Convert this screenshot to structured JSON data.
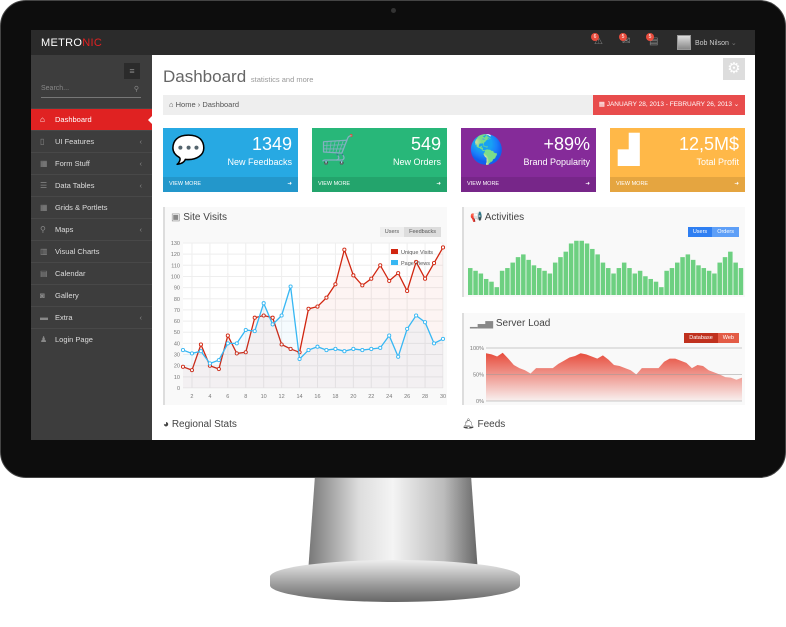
{
  "brand": {
    "logo_a": "METRO",
    "logo_b": "NIC",
    "accent": "#e02222"
  },
  "topbar": {
    "notifications": [
      {
        "icon": "warning-icon",
        "count": "6"
      },
      {
        "icon": "inbox-icon",
        "count": "5"
      },
      {
        "icon": "tasks-icon",
        "count": "5"
      }
    ],
    "user": "Bob Nilson"
  },
  "sidebar": {
    "search_placeholder": "Search...",
    "items": [
      {
        "label": "Dashboard",
        "icon": "⌂",
        "active": true,
        "sub": false
      },
      {
        "label": "UI Features",
        "icon": "▯",
        "sub": true
      },
      {
        "label": "Form Stuff",
        "icon": "▦",
        "sub": true
      },
      {
        "label": "Data Tables",
        "icon": "☰",
        "sub": true
      },
      {
        "label": "Grids & Portlets",
        "icon": "▦",
        "sub": false
      },
      {
        "label": "Maps",
        "icon": "⚲",
        "sub": true
      },
      {
        "label": "Visual Charts",
        "icon": "▥",
        "sub": false
      },
      {
        "label": "Calendar",
        "icon": "▤",
        "sub": false
      },
      {
        "label": "Gallery",
        "icon": "◙",
        "sub": false
      },
      {
        "label": "Extra",
        "icon": "▬",
        "sub": true
      },
      {
        "label": "Login Page",
        "icon": "♟",
        "sub": false
      }
    ]
  },
  "page": {
    "title": "Dashboard",
    "subtitle": "statistics and more",
    "breadcrumb": [
      "Home",
      "Dashboard"
    ],
    "date_range": "JANUARY 28, 2013 - FEBRUARY 26, 2013"
  },
  "tiles": [
    {
      "value": "1349",
      "label": "New Feedbacks",
      "more": "VIEW MORE",
      "color": "#27a9e3",
      "icon": "💬"
    },
    {
      "value": "549",
      "label": "New Orders",
      "more": "VIEW MORE",
      "color": "#28b779",
      "icon": "🛒"
    },
    {
      "value": "+89%",
      "label": "Brand Popularity",
      "more": "VIEW MORE",
      "color": "#852b99",
      "icon": "🌎"
    },
    {
      "value": "12,5M$",
      "label": "Total Profit",
      "more": "VIEW MORE",
      "color": "#ffb848",
      "icon": "▟"
    }
  ],
  "site_visits": {
    "title": "Site Visits",
    "buttons": [
      "Users",
      "Feedbacks"
    ]
  },
  "activities": {
    "title": "Activities",
    "buttons": [
      "Users",
      "Orders"
    ]
  },
  "server_load": {
    "title": "Server Load",
    "buttons": [
      "Database",
      "Web"
    ]
  },
  "bottom": {
    "regional": "Regional Stats",
    "feeds": "Feeds"
  },
  "chart_data": [
    {
      "type": "line",
      "x": [
        1,
        2,
        3,
        4,
        5,
        6,
        7,
        8,
        9,
        10,
        11,
        12,
        13,
        14,
        15,
        16,
        17,
        18,
        19,
        20,
        21,
        22,
        23,
        24,
        25,
        26,
        27,
        28,
        29,
        30
      ],
      "xticks": [
        "2",
        "4",
        "6",
        "8",
        "10",
        "12",
        "14",
        "16",
        "18",
        "20",
        "22",
        "24",
        "26",
        "28",
        "30"
      ],
      "yticks": [
        "0",
        "10",
        "20",
        "30",
        "40",
        "50",
        "60",
        "70",
        "80",
        "90",
        "100",
        "110",
        "120",
        "130"
      ],
      "ylim": [
        0,
        130
      ],
      "grid": true,
      "legend": "top-right",
      "series": [
        {
          "name": "Unique Visits",
          "color": "#d12610",
          "values": [
            19,
            16,
            39,
            20,
            17,
            47,
            31,
            32,
            63,
            65,
            63,
            39,
            35,
            32,
            71,
            73,
            81,
            93,
            124,
            101,
            92,
            98,
            110,
            96,
            103,
            87,
            113,
            98,
            112,
            126
          ]
        },
        {
          "name": "Page Views",
          "color": "#37b7f3",
          "values": [
            34,
            31,
            33,
            22,
            25,
            40,
            40,
            52,
            51,
            76,
            57,
            65,
            91,
            26,
            34,
            37,
            34,
            35,
            33,
            35,
            34,
            35,
            36,
            47,
            28,
            53,
            65,
            59,
            40,
            44
          ]
        }
      ]
    },
    {
      "type": "bar",
      "color": "#6dd081",
      "values": [
        79,
        71,
        63,
        47,
        39,
        23,
        71,
        79,
        95,
        111,
        119,
        103,
        87,
        79,
        71,
        63,
        95,
        111,
        127,
        151,
        159,
        159,
        151,
        135,
        119,
        95,
        79,
        63,
        79,
        95,
        79,
        63,
        71,
        55,
        47,
        39,
        23,
        71,
        79,
        95,
        111,
        119,
        103,
        87,
        79,
        71,
        63,
        95,
        111,
        127,
        95,
        79
      ]
    },
    {
      "type": "area",
      "color": "#e74c3c",
      "yticks": [
        "0%",
        "50%",
        "100%"
      ],
      "ylim": [
        0,
        100
      ],
      "values": [
        90,
        88,
        84,
        91,
        80,
        68,
        62,
        58,
        52,
        62,
        62,
        62,
        62,
        70,
        76,
        82,
        85,
        90,
        88,
        84,
        80,
        86,
        78,
        68,
        66,
        62,
        58,
        50,
        62,
        62,
        62,
        62,
        74,
        80,
        80,
        76,
        72,
        62,
        68,
        66,
        58,
        54,
        50,
        45,
        44,
        40,
        44
      ]
    }
  ]
}
